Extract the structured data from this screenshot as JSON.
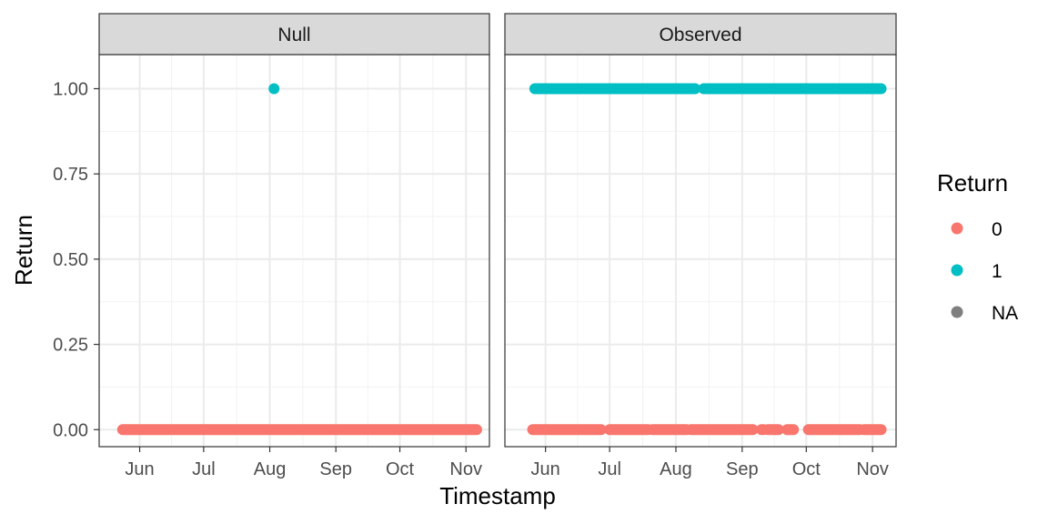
{
  "chart_data": {
    "type": "scatter",
    "x_axis": {
      "label": "Timestamp",
      "ticks": [
        {
          "label": "Jun",
          "date": "2023-06-01"
        },
        {
          "label": "Jul",
          "date": "2023-07-01"
        },
        {
          "label": "Aug",
          "date": "2023-08-01"
        },
        {
          "label": "Sep",
          "date": "2023-09-01"
        },
        {
          "label": "Oct",
          "date": "2023-10-01"
        },
        {
          "label": "Nov",
          "date": "2023-11-01"
        }
      ],
      "range": [
        "2023-05-13",
        "2023-11-12"
      ]
    },
    "y_axis": {
      "label": "Return",
      "ticks": [
        "0.00",
        "0.25",
        "0.50",
        "0.75",
        "1.00"
      ],
      "tick_values": [
        0,
        0.25,
        0.5,
        0.75,
        1
      ],
      "range": [
        -0.05,
        1.1
      ]
    },
    "grid": true,
    "legend": {
      "title": "Return",
      "position": "right",
      "entries": [
        {
          "label": "0",
          "color": "#F8766D"
        },
        {
          "label": "1",
          "color": "#00BFC4"
        },
        {
          "label": "NA",
          "color": "#7F7F7F"
        }
      ]
    },
    "panels": [
      {
        "title": "Null",
        "series": [
          {
            "value": 0,
            "segments": [
              [
                "2023-05-24",
                "2023-11-06"
              ]
            ],
            "points": []
          },
          {
            "value": 1,
            "segments": [],
            "points": [
              "2023-08-03"
            ]
          }
        ]
      },
      {
        "title": "Observed",
        "series": [
          {
            "value": 0,
            "segments": [
              [
                "2023-05-26",
                "2023-06-27"
              ],
              [
                "2023-07-01",
                "2023-07-19"
              ],
              [
                "2023-07-21",
                "2023-08-06"
              ],
              [
                "2023-08-08",
                "2023-09-06"
              ],
              [
                "2023-09-10",
                "2023-09-11"
              ],
              [
                "2023-09-13",
                "2023-09-18"
              ],
              [
                "2023-09-22",
                "2023-09-25"
              ],
              [
                "2023-10-02",
                "2023-10-26"
              ],
              [
                "2023-10-28",
                "2023-11-05"
              ]
            ],
            "points": []
          },
          {
            "value": 1,
            "segments": [
              [
                "2023-05-27",
                "2023-08-10"
              ],
              [
                "2023-08-14",
                "2023-11-05"
              ]
            ],
            "points": []
          }
        ]
      }
    ]
  }
}
